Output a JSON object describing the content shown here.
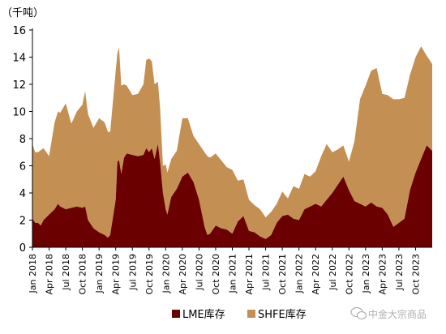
{
  "chart_data": {
    "type": "area",
    "stacked": true,
    "unit": "（千吨）",
    "ylim": [
      0,
      16
    ],
    "yticks": [
      "0",
      "2",
      "4",
      "6",
      "8",
      "10",
      "12",
      "14",
      "16"
    ],
    "xticks": [
      "Jan 2018",
      "Apr 2018",
      "Jul 2018",
      "Oct 2018",
      "Jan 2019",
      "Apr 2019",
      "Jul 2019",
      "Oct 2019",
      "Jan 2020",
      "Apr 2020",
      "Jul 2020",
      "Oct 2020",
      "Jan 2021",
      "Apr 2021",
      "Jul 2021",
      "Oct 2021",
      "Jan 2022",
      "Apr 2022",
      "Jul 2022",
      "Oct 2022",
      "Jan 2023",
      "Apr 2023",
      "Jul 2023",
      "Oct 2023"
    ],
    "x_start": "Jan 2018",
    "x_end": "Dec 2023",
    "grid": false,
    "legend_position": "bottom",
    "series": [
      {
        "name": "LME库存",
        "color": "#6b0000",
        "points": [
          [
            0,
            2.1
          ],
          [
            0.5,
            1.8
          ],
          [
            1,
            1.8
          ],
          [
            1.5,
            1.6
          ],
          [
            2,
            2
          ],
          [
            3,
            2.4
          ],
          [
            4,
            2.8
          ],
          [
            4.6,
            3.2
          ],
          [
            5,
            3
          ],
          [
            6,
            2.8
          ],
          [
            7,
            2.9
          ],
          [
            8,
            3
          ],
          [
            9,
            2.9
          ],
          [
            9.5,
            3
          ],
          [
            10,
            2
          ],
          [
            11,
            1.4
          ],
          [
            12,
            1.1
          ],
          [
            13,
            0.9
          ],
          [
            13.6,
            0.7
          ],
          [
            14,
            0.9
          ],
          [
            15,
            3.5
          ],
          [
            15.3,
            6.3
          ],
          [
            15.6,
            6.4
          ],
          [
            16,
            5.4
          ],
          [
            16.5,
            6.6
          ],
          [
            17,
            6.9
          ],
          [
            18,
            6.8
          ],
          [
            19,
            6.7
          ],
          [
            20,
            6.8
          ],
          [
            20.5,
            7.3
          ],
          [
            21,
            7
          ],
          [
            21.5,
            7.3
          ],
          [
            22,
            6.5
          ],
          [
            22.6,
            7.6
          ],
          [
            23,
            6.2
          ],
          [
            23.5,
            4
          ],
          [
            24,
            2.8
          ],
          [
            24.3,
            2.4
          ],
          [
            25,
            3.7
          ],
          [
            26,
            4.3
          ],
          [
            27,
            5.2
          ],
          [
            28,
            5.5
          ],
          [
            29,
            4.8
          ],
          [
            30,
            3.5
          ],
          [
            31,
            1.5
          ],
          [
            31.5,
            0.9
          ],
          [
            32,
            1
          ],
          [
            33,
            1.6
          ],
          [
            34,
            1.4
          ],
          [
            35,
            1.3
          ],
          [
            36,
            1
          ],
          [
            37,
            1.9
          ],
          [
            38,
            2.3
          ],
          [
            39,
            1.2
          ],
          [
            40,
            1.1
          ],
          [
            41,
            0.8
          ],
          [
            42,
            0.6
          ],
          [
            43,
            0.9
          ],
          [
            44,
            1.8
          ],
          [
            45,
            2.3
          ],
          [
            46,
            2.4
          ],
          [
            47,
            2.1
          ],
          [
            48,
            2
          ],
          [
            49,
            2.8
          ],
          [
            50,
            3
          ],
          [
            51,
            3.2
          ],
          [
            52,
            3
          ],
          [
            53,
            3.5
          ],
          [
            54,
            4
          ],
          [
            55,
            4.6
          ],
          [
            56,
            5.2
          ],
          [
            57,
            4.2
          ],
          [
            58,
            3.4
          ],
          [
            59,
            3.2
          ],
          [
            60,
            3
          ],
          [
            61,
            3.3
          ],
          [
            62,
            3
          ],
          [
            63,
            2.9
          ],
          [
            64,
            2.4
          ],
          [
            65,
            1.5
          ],
          [
            66,
            1.8
          ],
          [
            67,
            2.1
          ],
          [
            68,
            4.2
          ],
          [
            69,
            5.5
          ],
          [
            70,
            6.5
          ],
          [
            71,
            7.5
          ],
          [
            72,
            7.1
          ]
        ]
      },
      {
        "name": "SHFE库存",
        "color": "#c48f53",
        "points": [
          [
            0,
            5.5
          ],
          [
            0.5,
            5.2
          ],
          [
            1,
            5.2
          ],
          [
            2,
            5.3
          ],
          [
            3,
            4.3
          ],
          [
            4,
            6.4
          ],
          [
            4.6,
            6.8
          ],
          [
            5,
            6.9
          ],
          [
            6,
            7.8
          ],
          [
            7,
            6.2
          ],
          [
            8,
            7
          ],
          [
            9,
            7.6
          ],
          [
            9.5,
            8.5
          ],
          [
            10,
            7.8
          ],
          [
            11,
            7.4
          ],
          [
            12,
            8.4
          ],
          [
            13,
            8.3
          ],
          [
            13.6,
            7.8
          ],
          [
            14,
            7.6
          ],
          [
            15,
            9.5
          ],
          [
            15.3,
            8
          ],
          [
            15.6,
            8.3
          ],
          [
            16,
            6.5
          ],
          [
            16.5,
            5.4
          ],
          [
            17,
            5
          ],
          [
            18,
            4.4
          ],
          [
            19,
            4.6
          ],
          [
            20,
            5.2
          ],
          [
            20.5,
            6.5
          ],
          [
            21,
            6.9
          ],
          [
            21.5,
            6.4
          ],
          [
            22,
            5.5
          ],
          [
            22.6,
            4.6
          ],
          [
            23,
            4
          ],
          [
            23.5,
            2
          ],
          [
            24,
            3.3
          ],
          [
            24.3,
            3.1
          ],
          [
            25,
            2.8
          ],
          [
            26,
            2.8
          ],
          [
            27,
            4.3
          ],
          [
            28,
            4
          ],
          [
            29,
            3.4
          ],
          [
            30,
            4.1
          ],
          [
            31,
            5.5
          ],
          [
            31.5,
            5.8
          ],
          [
            32,
            5.6
          ],
          [
            33,
            5.3
          ],
          [
            34,
            5
          ],
          [
            35,
            4.6
          ],
          [
            36,
            4.7
          ],
          [
            37,
            3
          ],
          [
            38,
            2.7
          ],
          [
            39,
            2.3
          ],
          [
            40,
            2
          ],
          [
            41,
            2
          ],
          [
            42,
            1.6
          ],
          [
            43,
            1.7
          ],
          [
            44,
            1.4
          ],
          [
            45,
            1.8
          ],
          [
            46,
            1.2
          ],
          [
            47,
            2.4
          ],
          [
            48,
            2.3
          ],
          [
            49,
            2.6
          ],
          [
            50,
            2.2
          ],
          [
            51,
            2.4
          ],
          [
            52,
            3.7
          ],
          [
            53,
            4.1
          ],
          [
            54,
            3
          ],
          [
            55,
            2.6
          ],
          [
            56,
            2.3
          ],
          [
            57,
            2.1
          ],
          [
            58,
            4.4
          ],
          [
            59,
            7.7
          ],
          [
            60,
            8.9
          ],
          [
            61,
            9.7
          ],
          [
            62,
            10.2
          ],
          [
            63,
            8.4
          ],
          [
            64,
            8.8
          ],
          [
            65,
            9.4
          ],
          [
            66,
            9.1
          ],
          [
            67,
            8.9
          ],
          [
            68,
            8.5
          ],
          [
            69,
            8.5
          ],
          [
            70,
            8.3
          ],
          [
            71,
            6.6
          ],
          [
            72,
            6.4
          ]
        ]
      }
    ]
  },
  "watermark": {
    "icon": "wechat-icon",
    "text": "中金大宗商品"
  }
}
